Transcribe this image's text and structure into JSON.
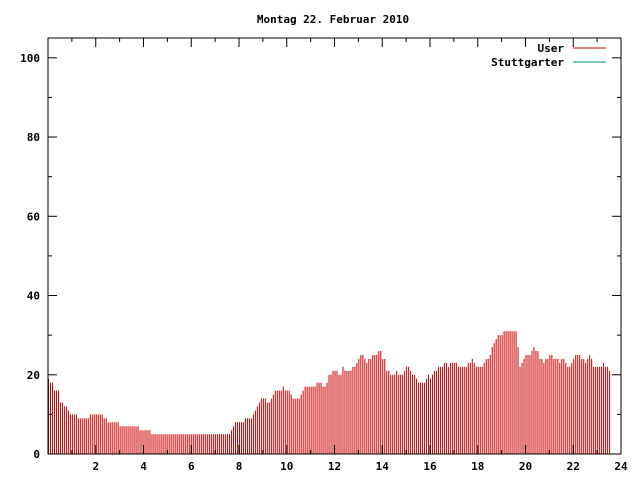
{
  "chart_data": {
    "type": "bar",
    "title": "Montag 22. Februar 2010",
    "xlabel": "",
    "ylabel": "",
    "xlim": [
      0,
      24
    ],
    "ylim": [
      0,
      105
    ],
    "x_ticks": [
      "2",
      "4",
      "6",
      "8",
      "10",
      "12",
      "14",
      "16",
      "18",
      "20",
      "22",
      "24"
    ],
    "y_ticks": [
      "0",
      "20",
      "40",
      "60",
      "80",
      "100"
    ],
    "legend": {
      "placement": "top-right",
      "entries": [
        "User",
        "Stuttgarter"
      ]
    },
    "series": [
      {
        "name": "User",
        "color": "#cc0000",
        "x_step_minutes": 5,
        "values": [
          19,
          18,
          18,
          16,
          16,
          16,
          13,
          13,
          12,
          12,
          11,
          10,
          10,
          10,
          10,
          9,
          9,
          9,
          9,
          9,
          9,
          10,
          10,
          10,
          10,
          10,
          10,
          10,
          9,
          9,
          8,
          8,
          8,
          8,
          8,
          8,
          7,
          7,
          7,
          7,
          7,
          7,
          7,
          7,
          7,
          7,
          6,
          6,
          6,
          6,
          6,
          6,
          5,
          5,
          5,
          5,
          5,
          5,
          5,
          5,
          5,
          5,
          5,
          5,
          5,
          5,
          5,
          5,
          5,
          5,
          5,
          5,
          5,
          5,
          5,
          5,
          5,
          5,
          5,
          5,
          5,
          5,
          5,
          5,
          5,
          5,
          5,
          5,
          5,
          5,
          5,
          5,
          6,
          7,
          8,
          8,
          8,
          8,
          8,
          9,
          9,
          9,
          9,
          10,
          11,
          12,
          13,
          14,
          14,
          14,
          13,
          13,
          14,
          15,
          16,
          16,
          16,
          16,
          17,
          16,
          16,
          16,
          15,
          14,
          14,
          14,
          14,
          15,
          16,
          17,
          17,
          17,
          17,
          17,
          17,
          18,
          18,
          18,
          17,
          17,
          18,
          20,
          20,
          21,
          21,
          21,
          20,
          20,
          22,
          21,
          21,
          21,
          21,
          22,
          22,
          23,
          24,
          25,
          25,
          24,
          23,
          24,
          24,
          25,
          25,
          25,
          26,
          26,
          24,
          24,
          21,
          21,
          20,
          20,
          20,
          21,
          20,
          20,
          20,
          21,
          22,
          22,
          21,
          20,
          20,
          19,
          18,
          18,
          18,
          18,
          19,
          20,
          19,
          20,
          21,
          21,
          22,
          22,
          22,
          23,
          23,
          22,
          23,
          23,
          23,
          23,
          22,
          22,
          22,
          22,
          22,
          23,
          23,
          24,
          23,
          22,
          22,
          22,
          22,
          23,
          24,
          24,
          25,
          27,
          28,
          29,
          30,
          30,
          30,
          31,
          31,
          31,
          31,
          31,
          31,
          31,
          27,
          22,
          23,
          24,
          25,
          25,
          25,
          26,
          27,
          26,
          26,
          24,
          24,
          23,
          24,
          24,
          25,
          25,
          24,
          24,
          24,
          23,
          24,
          24,
          23,
          22,
          22,
          23,
          24,
          25,
          25,
          25,
          24,
          24,
          23,
          24,
          25,
          24,
          22,
          22,
          22,
          22,
          22,
          23,
          22,
          22,
          21
        ]
      },
      {
        "name": "Stuttgarter",
        "color": "#008b8b",
        "values": []
      }
    ]
  }
}
